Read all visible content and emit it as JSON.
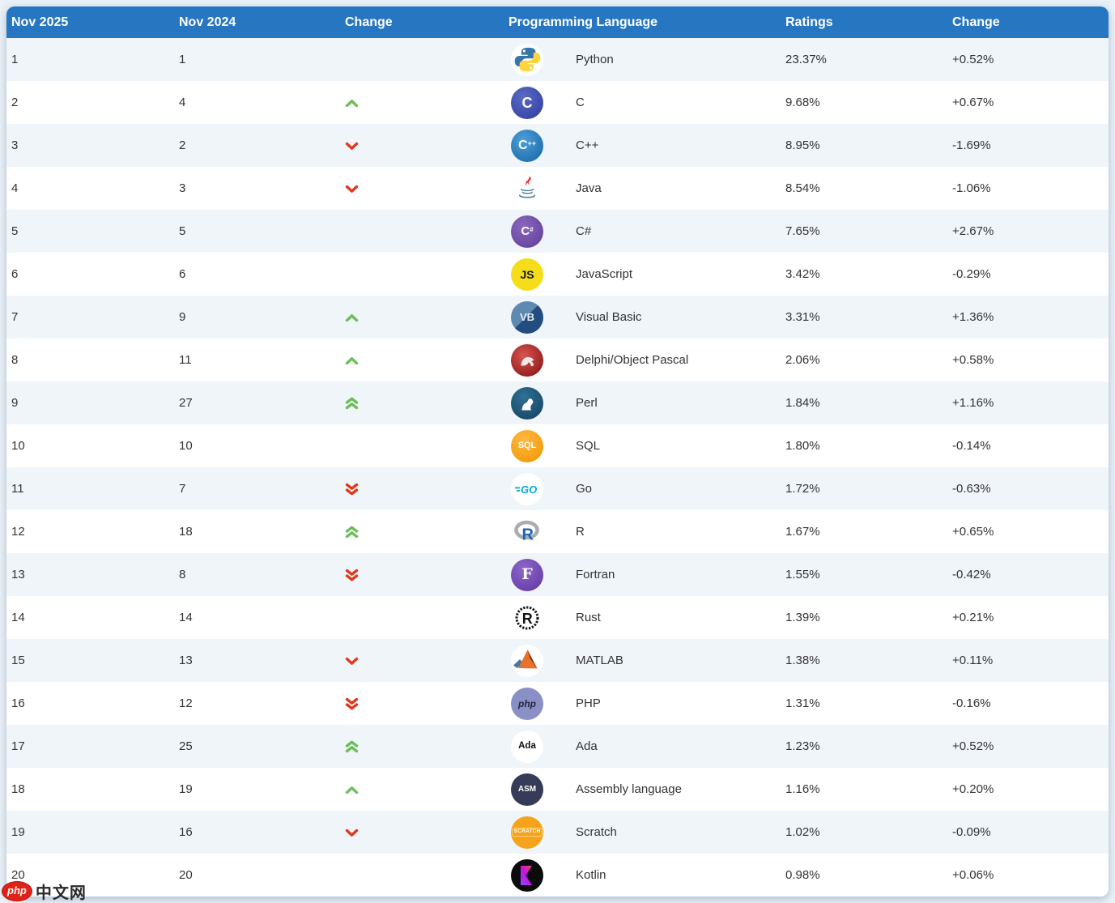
{
  "table": {
    "headers": [
      "Nov 2025",
      "Nov 2024",
      "Change",
      "Programming Language",
      "Ratings",
      "Change"
    ],
    "colors": {
      "header_bg": "#2776C2",
      "row_alt_bg": "#F0F5FA",
      "row_bg": "#FFFFFF",
      "up_arrow": "#6CBE58",
      "down_arrow": "#E0391B",
      "page_bg": "#EAF1F8",
      "text": "#333333"
    },
    "rows": [
      {
        "rank_now": "1",
        "rank_prev": "1",
        "move": "none",
        "icon": "python-icon",
        "language": "Python",
        "ratings": "23.37%",
        "change": "+0.52%"
      },
      {
        "rank_now": "2",
        "rank_prev": "4",
        "move": "up",
        "icon": "c-icon",
        "language": "C",
        "ratings": "9.68%",
        "change": "+0.67%"
      },
      {
        "rank_now": "3",
        "rank_prev": "2",
        "move": "down",
        "icon": "cpp-icon",
        "language": "C++",
        "ratings": "8.95%",
        "change": "-1.69%"
      },
      {
        "rank_now": "4",
        "rank_prev": "3",
        "move": "down",
        "icon": "java-icon",
        "language": "Java",
        "ratings": "8.54%",
        "change": "-1.06%"
      },
      {
        "rank_now": "5",
        "rank_prev": "5",
        "move": "none",
        "icon": "csharp-icon",
        "language": "C#",
        "ratings": "7.65%",
        "change": "+2.67%"
      },
      {
        "rank_now": "6",
        "rank_prev": "6",
        "move": "none",
        "icon": "js-icon",
        "language": "JavaScript",
        "ratings": "3.42%",
        "change": "-0.29%"
      },
      {
        "rank_now": "7",
        "rank_prev": "9",
        "move": "up",
        "icon": "vb-icon",
        "language": "Visual Basic",
        "ratings": "3.31%",
        "change": "+1.36%"
      },
      {
        "rank_now": "8",
        "rank_prev": "11",
        "move": "up",
        "icon": "delphi-icon",
        "language": "Delphi/Object Pascal",
        "ratings": "2.06%",
        "change": "+0.58%"
      },
      {
        "rank_now": "9",
        "rank_prev": "27",
        "move": "up2",
        "icon": "perl-icon",
        "language": "Perl",
        "ratings": "1.84%",
        "change": "+1.16%"
      },
      {
        "rank_now": "10",
        "rank_prev": "10",
        "move": "none",
        "icon": "sql-icon",
        "language": "SQL",
        "ratings": "1.80%",
        "change": "-0.14%"
      },
      {
        "rank_now": "11",
        "rank_prev": "7",
        "move": "down2",
        "icon": "go-icon",
        "language": "Go",
        "ratings": "1.72%",
        "change": "-0.63%"
      },
      {
        "rank_now": "12",
        "rank_prev": "18",
        "move": "up2",
        "icon": "r-icon",
        "language": "R",
        "ratings": "1.67%",
        "change": "+0.65%"
      },
      {
        "rank_now": "13",
        "rank_prev": "8",
        "move": "down2",
        "icon": "fortran-icon",
        "language": "Fortran",
        "ratings": "1.55%",
        "change": "-0.42%"
      },
      {
        "rank_now": "14",
        "rank_prev": "14",
        "move": "none",
        "icon": "rust-icon",
        "language": "Rust",
        "ratings": "1.39%",
        "change": "+0.21%"
      },
      {
        "rank_now": "15",
        "rank_prev": "13",
        "move": "down",
        "icon": "matlab-icon",
        "language": "MATLAB",
        "ratings": "1.38%",
        "change": "+0.11%"
      },
      {
        "rank_now": "16",
        "rank_prev": "12",
        "move": "down2",
        "icon": "php-icon",
        "language": "PHP",
        "ratings": "1.31%",
        "change": "-0.16%"
      },
      {
        "rank_now": "17",
        "rank_prev": "25",
        "move": "up2",
        "icon": "ada-icon",
        "language": "Ada",
        "ratings": "1.23%",
        "change": "+0.52%"
      },
      {
        "rank_now": "18",
        "rank_prev": "19",
        "move": "up",
        "icon": "asm-icon",
        "language": "Assembly language",
        "ratings": "1.16%",
        "change": "+0.20%"
      },
      {
        "rank_now": "19",
        "rank_prev": "16",
        "move": "down",
        "icon": "scratch-icon",
        "language": "Scratch",
        "ratings": "1.02%",
        "change": "-0.09%"
      },
      {
        "rank_now": "20",
        "rank_prev": "20",
        "move": "none",
        "icon": "kotlin-icon",
        "language": "Kotlin",
        "ratings": "0.98%",
        "change": "+0.06%"
      }
    ]
  },
  "watermark": {
    "logo_text": "php",
    "site_text": "中文网"
  }
}
